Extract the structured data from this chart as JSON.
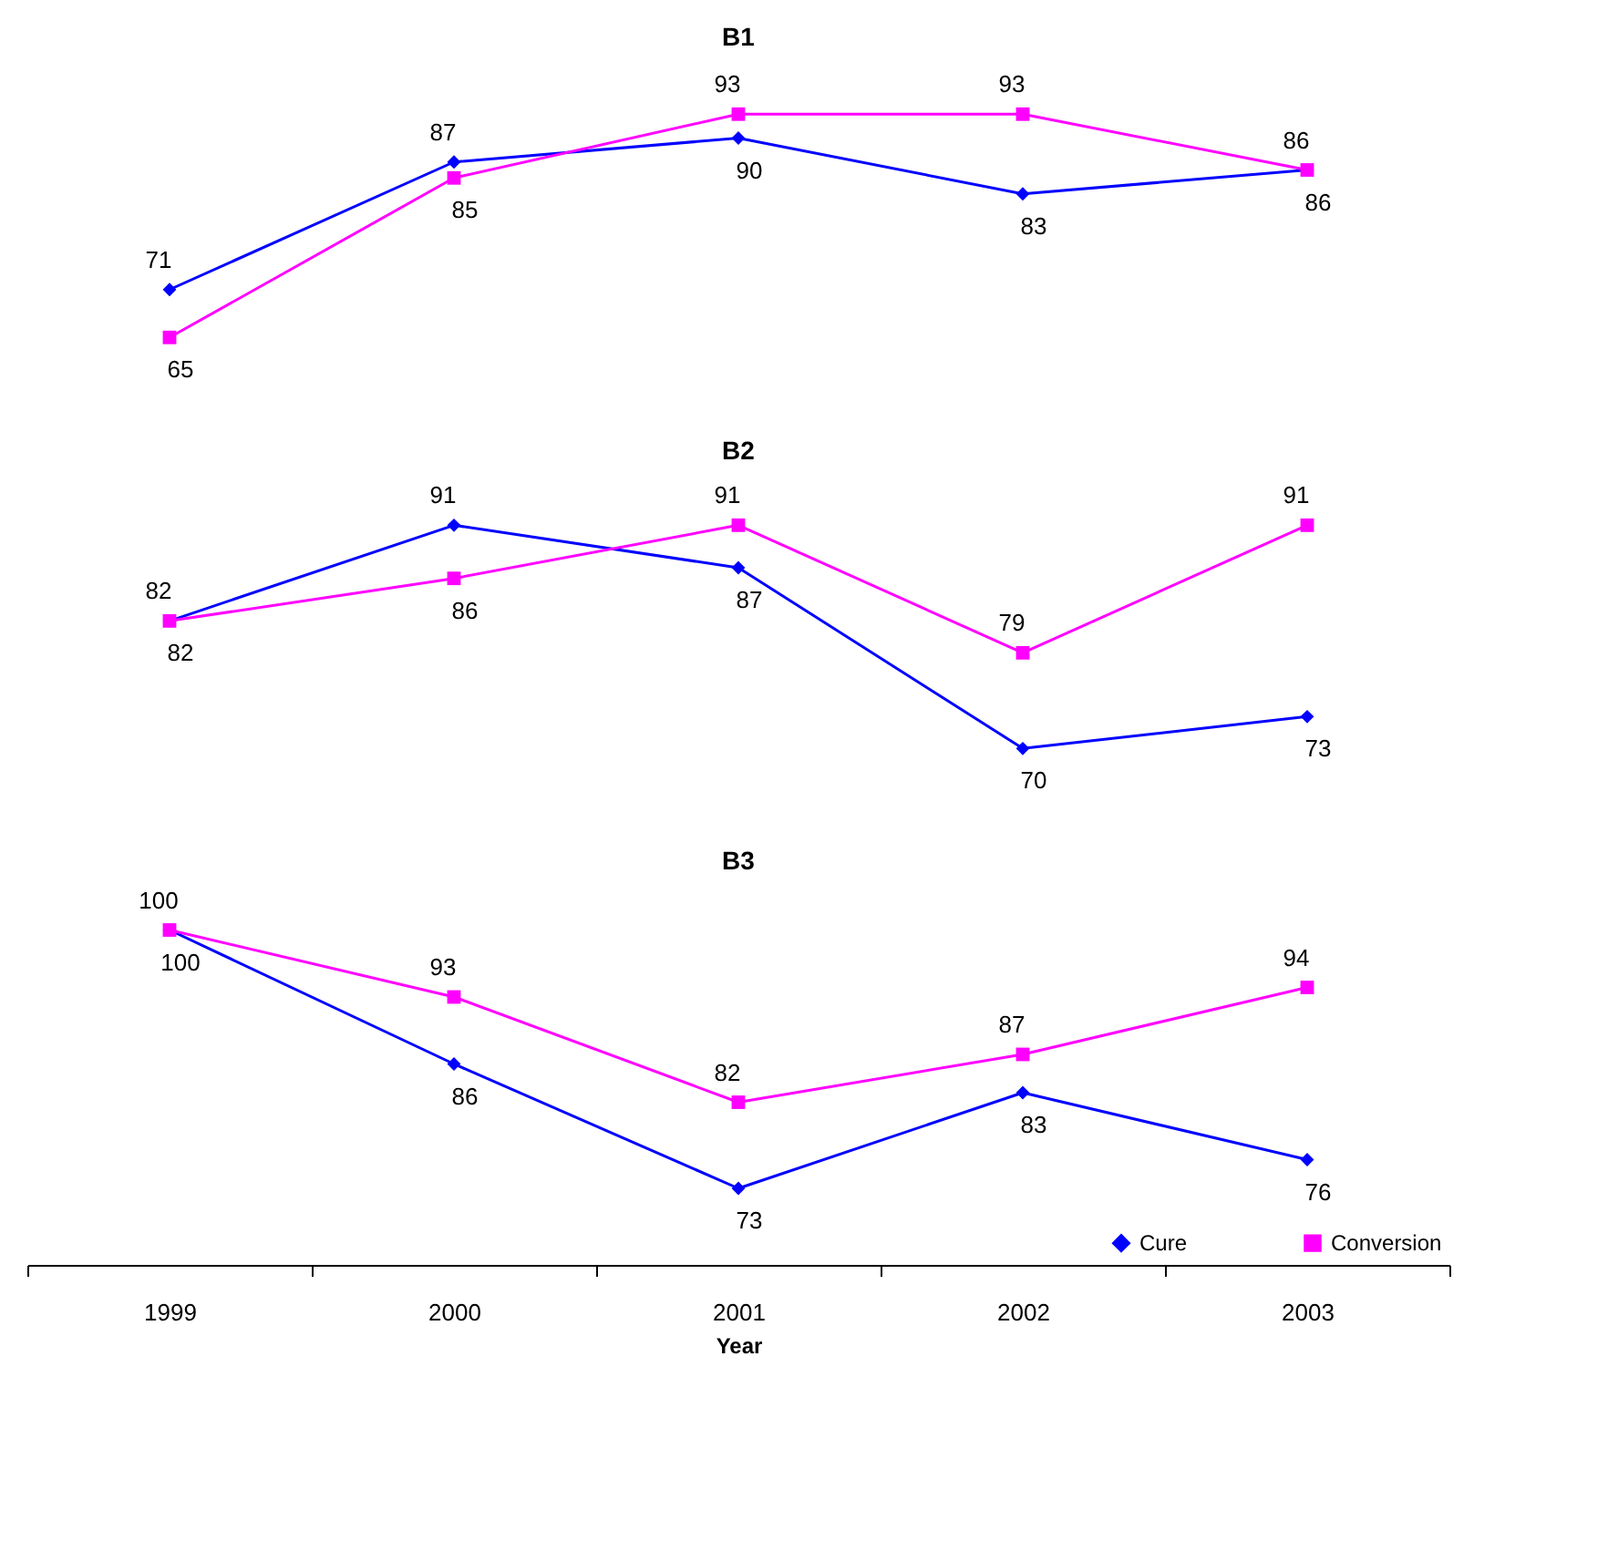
{
  "chart_data": [
    {
      "type": "line",
      "title": "B1",
      "categories": [
        "1999",
        "2000",
        "2001",
        "2002",
        "2003"
      ],
      "data_labels": true,
      "legend": false,
      "tick_labels": false,
      "series": [
        {
          "color": "#0000ff",
          "marker": "diamond",
          "values": [
            71,
            87,
            90,
            83,
            86
          ]
        },
        {
          "color": "#ff00ff",
          "marker": "square",
          "values": [
            65,
            85,
            93,
            93,
            86
          ]
        }
      ]
    },
    {
      "type": "line",
      "title": "B2",
      "categories": [
        "1999",
        "2000",
        "2001",
        "2002",
        "2003"
      ],
      "data_labels": true,
      "legend": false,
      "tick_labels": false,
      "series": [
        {
          "color": "#0000ff",
          "marker": "diamond",
          "values": [
            82,
            91,
            87,
            70,
            73
          ]
        },
        {
          "color": "#ff00ff",
          "marker": "square",
          "values": [
            82,
            86,
            91,
            79,
            91
          ]
        }
      ]
    },
    {
      "type": "line",
      "title": "B3",
      "xlabel": "Year",
      "categories": [
        "1999",
        "2000",
        "2001",
        "2002",
        "2003"
      ],
      "data_labels": true,
      "legend": "bottom right",
      "tick_labels": "x",
      "series": [
        {
          "name": "Cure",
          "color": "#0000ff",
          "marker": "diamond",
          "values": [
            100,
            86,
            73,
            83,
            76
          ]
        },
        {
          "name": "Conversion",
          "color": "#ff00ff",
          "marker": "square",
          "values": [
            100,
            93,
            82,
            87,
            94
          ]
        }
      ]
    }
  ]
}
